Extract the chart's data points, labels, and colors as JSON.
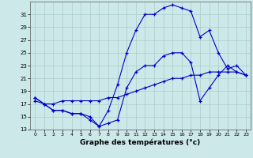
{
  "xlabel": "Graphe des températures (°c)",
  "background_color": "#cce8e8",
  "line_color": "#0000cc",
  "xlim": [
    -0.5,
    23.5
  ],
  "ylim": [
    13,
    33
  ],
  "xticks": [
    0,
    1,
    2,
    3,
    4,
    5,
    6,
    7,
    8,
    9,
    10,
    11,
    12,
    13,
    14,
    15,
    16,
    17,
    18,
    19,
    20,
    21,
    22,
    23
  ],
  "yticks": [
    13,
    15,
    17,
    19,
    21,
    23,
    25,
    27,
    29,
    31
  ],
  "series1_x": [
    0,
    1,
    2,
    3,
    4,
    5,
    6,
    7,
    8,
    9,
    10,
    11,
    12,
    13,
    14,
    15,
    16,
    17,
    18,
    19,
    20,
    21,
    22,
    23
  ],
  "series1_y": [
    18,
    17,
    16,
    16,
    15.5,
    15.5,
    14.5,
    13.5,
    14,
    14.5,
    19.5,
    22,
    23,
    23,
    24.5,
    25,
    25,
    23.5,
    17.5,
    19.5,
    21.5,
    23,
    22,
    21.5
  ],
  "series2_x": [
    0,
    1,
    2,
    3,
    4,
    5,
    6,
    7,
    8,
    9,
    10,
    11,
    12,
    13,
    14,
    15,
    16,
    17,
    18,
    19,
    20,
    21,
    22,
    23
  ],
  "series2_y": [
    17.5,
    17,
    17,
    17.5,
    17.5,
    17.5,
    17.5,
    17.5,
    18,
    18,
    18.5,
    19,
    19.5,
    20,
    20.5,
    21,
    21,
    21.5,
    21.5,
    22,
    22,
    22,
    22,
    21.5
  ],
  "series3_x": [
    0,
    1,
    2,
    3,
    4,
    5,
    6,
    7,
    8,
    9,
    10,
    11,
    12,
    13,
    14,
    15,
    16,
    17,
    18,
    19,
    20,
    21,
    22,
    23
  ],
  "series3_y": [
    18,
    17,
    16,
    16,
    15.5,
    15.5,
    15,
    13.5,
    16,
    20,
    25,
    28.5,
    31,
    31,
    32,
    32.5,
    32,
    31.5,
    27.5,
    28.5,
    25,
    22.5,
    23,
    21.5
  ]
}
